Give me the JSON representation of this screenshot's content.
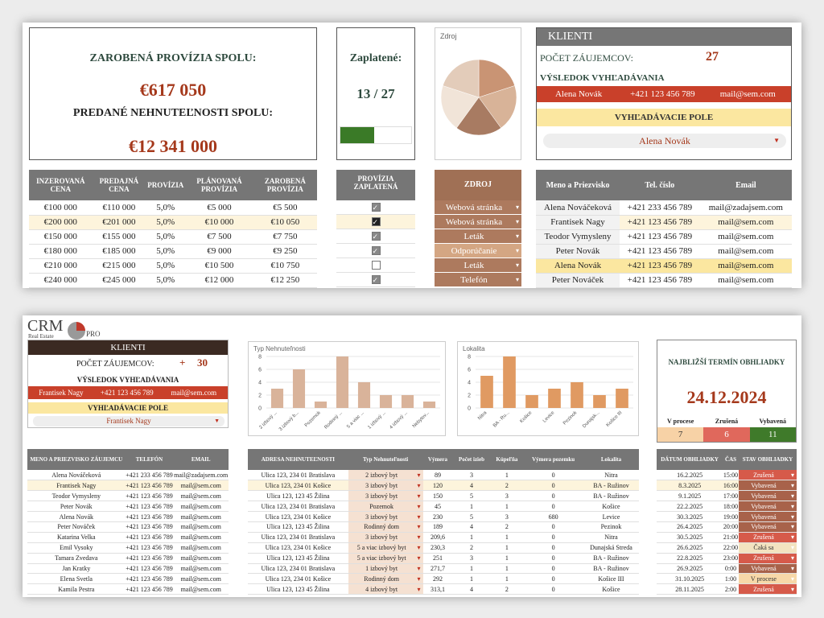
{
  "top": {
    "summary": {
      "earned_title": "ZAROBENÁ PROVÍZIA SPOLU:",
      "earned_value": "€617 050",
      "sold_title": "PREDANÉ NEHNUTEĽNOSTI SPOLU:",
      "sold_value": "€12 341 000"
    },
    "paid": {
      "title": "Zaplatené:",
      "value": "13 / 27",
      "progress": 0.48
    },
    "source_chart": {
      "title": "Zdroj",
      "slices": [
        {
          "value": 3,
          "color": "#c99474"
        },
        {
          "value": 3,
          "color": "#d8b398"
        },
        {
          "value": 3,
          "color": "#a87b62"
        },
        {
          "value": 3,
          "color": "#f1e4d8"
        },
        {
          "value": 3,
          "color": "#e3ccba"
        }
      ]
    },
    "klienti": {
      "title": "KLIENTI",
      "count_label": "POČET ZÁUJEMCOV:",
      "count_value": "27",
      "result_label": "VÝSLEDOK VYHĽADÁVANIA",
      "result": [
        "Alena Novák",
        "+421 123 456 789",
        "mail@sem.com"
      ],
      "search_label": "VYHĽADÁVACIE POLE",
      "search_value": "Alena Novák"
    },
    "commission_table": {
      "headers": [
        "INZEROVANÁ CENA",
        "PREDAJNÁ CENA",
        "PROVÍZIA",
        "PLÁNOVANÁ PROVÍZIA",
        "ZAROBENÁ PROVÍZIA"
      ],
      "rows": [
        [
          "€100 000",
          "€110 000",
          "5,0%",
          "€5 000",
          "€5 500"
        ],
        [
          "€200 000",
          "€201 000",
          "5,0%",
          "€10 000",
          "€10 050"
        ],
        [
          "€150 000",
          "€155 000",
          "5,0%",
          "€7 500",
          "€7 750"
        ],
        [
          "€180 000",
          "€185 000",
          "5,0%",
          "€9 000",
          "€9 250"
        ],
        [
          "€210 000",
          "€215 000",
          "5,0%",
          "€10 500",
          "€10 750"
        ],
        [
          "€240 000",
          "€245 000",
          "5,0%",
          "€12 000",
          "€12 250"
        ]
      ]
    },
    "paid_table": {
      "header": "PROVÍZIA ZAPLATENÁ",
      "checks": [
        true,
        true,
        true,
        true,
        false,
        true
      ]
    },
    "source_table": {
      "header": "ZDROJ",
      "rows": [
        "Webová stránka",
        "Webová stránka",
        "Leták",
        "Odporúčanie",
        "Leták",
        "Telefón"
      ]
    },
    "client_table": {
      "headers": [
        "Meno a Priezvisko",
        "Tel. číslo",
        "Email"
      ],
      "rows": [
        [
          "Alena Nováčeková",
          "+421 233 456 789",
          "mail@zadajsem.com"
        ],
        [
          "Frantisek Nagy",
          "+421 123 456 789",
          "mail@sem.com"
        ],
        [
          "Teodor Vymysleny",
          "+421 123 456 789",
          "mail@sem.com"
        ],
        [
          "Peter Novák",
          "+421 123 456 789",
          "mail@sem.com"
        ],
        [
          "Alena Novák",
          "+421 123 456 789",
          "mail@sem.com"
        ],
        [
          "Peter Nováček",
          "+421 123 456 789",
          "mail@sem.com"
        ]
      ]
    }
  },
  "bottom": {
    "logo": {
      "crm": "CRM",
      "sub": "Real Estate",
      "pro": "PRO"
    },
    "klienti": {
      "title": "KLIENTI",
      "count_label": "POČET ZÁUJEMCOV:",
      "plus": "+",
      "count_value": "30",
      "result_label": "VÝSLEDOK VYHĽADÁVANIA",
      "result": [
        "Frantisek Nagy",
        "+421 123 456 789",
        "mail@sem.com"
      ],
      "search_label": "VYHĽADÁVACIE POLE",
      "search_value": "Frantisek Nagy"
    },
    "chart_data": [
      {
        "type": "bar",
        "title": "Typ Nehnuteľnosti",
        "categories": [
          "2 izbový ...",
          "3 izbový b...",
          "Pozemok",
          "Rodinný ...",
          "5 a viac ...",
          "1 izbový ...",
          "4 izbový ...",
          "Nebytov..."
        ],
        "values": [
          3,
          6,
          1,
          8,
          4,
          2,
          2,
          1
        ],
        "ylim": [
          0,
          8
        ],
        "yticks": [
          "0",
          "2",
          "4",
          "6",
          "8"
        ],
        "color": "#d9b39a"
      },
      {
        "type": "bar",
        "title": "Lokalita",
        "categories": [
          "Nitra",
          "BA - Ru...",
          "Košice",
          "Levice",
          "Pezinok",
          "Dunajsk...",
          "Košice III"
        ],
        "values": [
          5,
          8,
          2,
          3,
          4,
          2,
          3
        ],
        "ylim": [
          0,
          8
        ],
        "yticks": [
          "0",
          "2",
          "4",
          "6",
          "8"
        ],
        "color": "#e09a62"
      }
    ],
    "next_viewing": {
      "title": "NAJBLIŽŠÍ TERMÍN OBHLIADKY",
      "date": "24.12.2024",
      "stats": [
        {
          "label": "V procese",
          "value": "7",
          "color": "#f7d2a6",
          "text": "#333"
        },
        {
          "label": "Zrušená",
          "value": "6",
          "color": "#e0685c",
          "text": "#fff"
        },
        {
          "label": "Vybavená",
          "value": "11",
          "color": "#3f7a2a",
          "text": "#fff"
        }
      ]
    },
    "contacts": {
      "headers": [
        "MENO A PRIEZVISKO ZÁUJEMCU",
        "TELEFÓN",
        "EMAIL"
      ],
      "rows": [
        [
          "Alena Nováčeková",
          "+421 233 456 789",
          "mail@zadajsem.com"
        ],
        [
          "Frantisek Nagy",
          "+421 123 456 789",
          "mail@sem.com"
        ],
        [
          "Teodor Vymysleny",
          "+421 123 456 789",
          "mail@sem.com"
        ],
        [
          "Peter Novák",
          "+421 123 456 789",
          "mail@sem.com"
        ],
        [
          "Alena Novák",
          "+421 123 456 789",
          "mail@sem.com"
        ],
        [
          "Peter Nováček",
          "+421 123 456 789",
          "mail@sem.com"
        ],
        [
          "Katarina Velka",
          "+421 123 456 789",
          "mail@sem.com"
        ],
        [
          "Emil Vysoky",
          "+421 123 456 789",
          "mail@sem.com"
        ],
        [
          "Tamara Zvedava",
          "+421 123 456 789",
          "mail@sem.com"
        ],
        [
          "Jan Kratky",
          "+421 123 456 789",
          "mail@sem.com"
        ],
        [
          "Elena Svetla",
          "+421 123 456 789",
          "mail@sem.com"
        ],
        [
          "Kamila Pestra",
          "+421 123 456 789",
          "mail@sem.com"
        ]
      ]
    },
    "properties": {
      "headers": [
        "ADRESA NEHNUTEĽNOSTI",
        "Typ Nehnuteľnosti",
        "Výmera",
        "Počet izieb",
        "Kúpeľňa",
        "Výmera pozemku",
        "Lokalita"
      ],
      "rows": [
        [
          "Ulica 123, 234 01 Bratislava",
          "2 izbový byt",
          "89",
          "3",
          "1",
          "0",
          "Nitra"
        ],
        [
          "Ulica 123, 234 01 Košice",
          "3 izbový byt",
          "120",
          "4",
          "2",
          "0",
          "BA - Ružinov"
        ],
        [
          "Ulica 123, 123 45 Žilina",
          "3 izbový byt",
          "150",
          "5",
          "3",
          "0",
          "BA - Ružinov"
        ],
        [
          "Ulica 123, 234 01 Bratislava",
          "Pozemok",
          "45",
          "1",
          "1",
          "0",
          "Košice"
        ],
        [
          "Ulica 123, 234 01 Košice",
          "3 izbový byt",
          "230",
          "5",
          "3",
          "680",
          "Levice"
        ],
        [
          "Ulica 123, 123 45 Žilina",
          "Rodinný dom",
          "189",
          "4",
          "2",
          "0",
          "Pezinok"
        ],
        [
          "Ulica 123, 234 01 Bratislava",
          "3 izbový byt",
          "209,6",
          "1",
          "1",
          "0",
          "Nitra"
        ],
        [
          "Ulica 123, 234 01 Košice",
          "5 a viac izbový byt",
          "230,3",
          "2",
          "1",
          "0",
          "Dunajská Streda"
        ],
        [
          "Ulica 123, 123 45 Žilina",
          "5 a viac izbový byt",
          "251",
          "3",
          "1",
          "0",
          "BA - Ružinov"
        ],
        [
          "Ulica 123, 234 01 Bratislava",
          "1 izbový byt",
          "271,7",
          "1",
          "1",
          "0",
          "BA - Ružinov"
        ],
        [
          "Ulica 123, 234 01 Košice",
          "Rodinný dom",
          "292",
          "1",
          "1",
          "0",
          "Košice III"
        ],
        [
          "Ulica 123, 123 45 Žilina",
          "4 izbový byt",
          "313,1",
          "4",
          "2",
          "0",
          "Košice"
        ]
      ]
    },
    "viewings": {
      "headers": [
        "DÁTUM OBHLIADKY",
        "ČAS",
        "STAV OBHLIADKY"
      ],
      "rows": [
        [
          "16.2.2025",
          "15:00",
          "Zrušená"
        ],
        [
          "8.3.2025",
          "16:00",
          "Vybavená"
        ],
        [
          "9.1.2025",
          "17:00",
          "Vybavená"
        ],
        [
          "22.2.2025",
          "18:00",
          "Vybavená"
        ],
        [
          "30.3.2025",
          "19:00",
          "Vybavená"
        ],
        [
          "26.4.2025",
          "20:00",
          "Vybavená"
        ],
        [
          "30.5.2025",
          "21:00",
          "Zrušená"
        ],
        [
          "26.6.2025",
          "22:00",
          "Čaká sa"
        ],
        [
          "22.8.2025",
          "23:00",
          "Zrušená"
        ],
        [
          "26.9.2025",
          "0:00",
          "Vybavená"
        ],
        [
          "31.10.2025",
          "1:00",
          "V procese"
        ],
        [
          "28.11.2025",
          "2:00",
          "Zrušená"
        ]
      ]
    }
  }
}
